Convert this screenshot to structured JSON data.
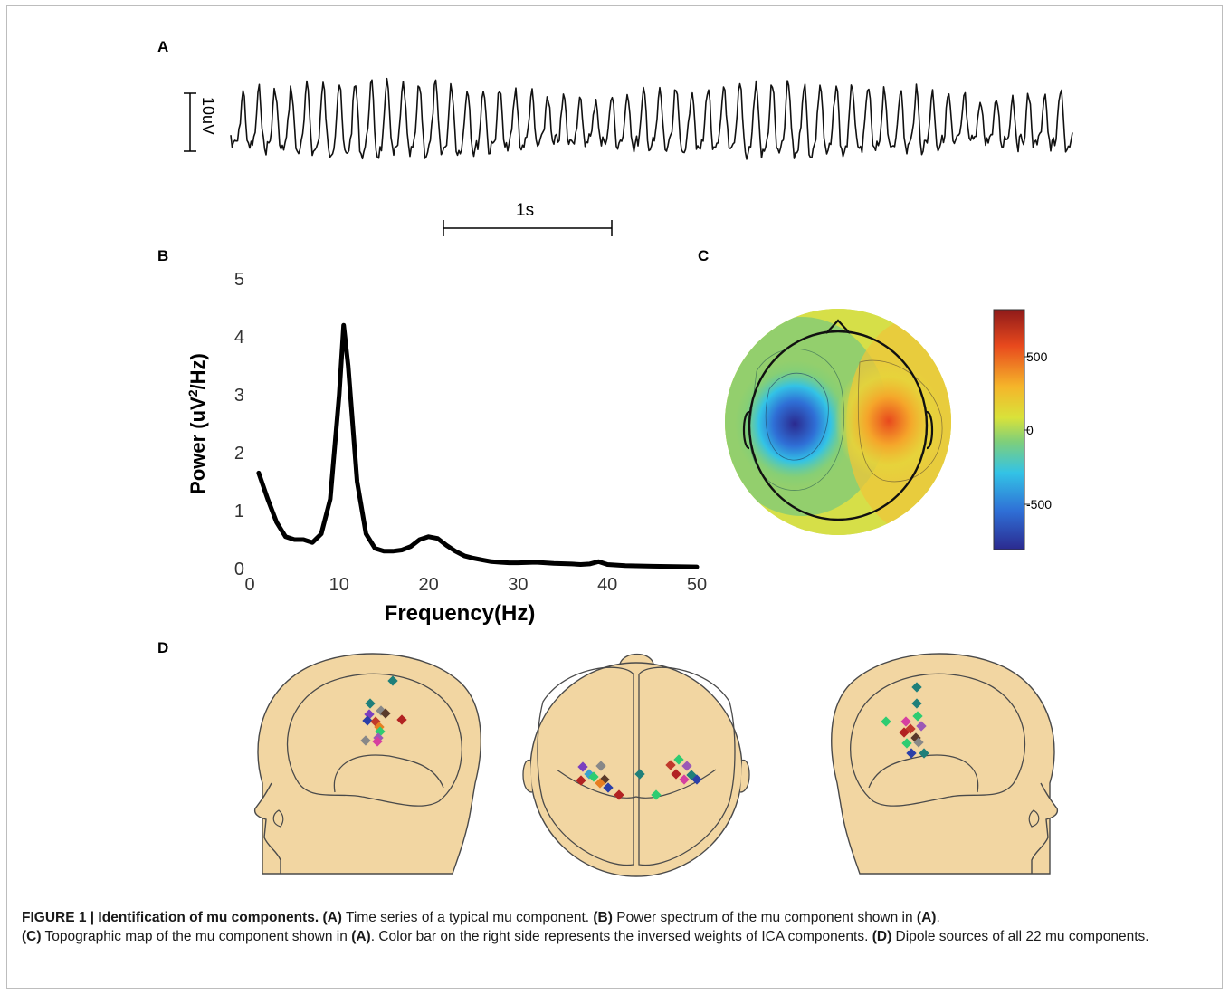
{
  "panels": {
    "a": "A",
    "b": "B",
    "c": "C",
    "d": "D"
  },
  "panel_a": {
    "scale_voltage": "10uV",
    "scale_time": "1s"
  },
  "chart_data": [
    {
      "type": "line",
      "panel": "B",
      "xlabel": "Frequency(Hz)",
      "ylabel": "Power (uV²/Hz)",
      "xlim": [
        0,
        50
      ],
      "ylim": [
        0,
        5
      ],
      "xticks": [
        0,
        10,
        20,
        30,
        40,
        50
      ],
      "yticks": [
        0,
        1,
        2,
        3,
        4,
        5
      ],
      "series": [
        {
          "x": [
            1,
            2,
            3,
            4,
            5,
            6,
            7,
            8,
            9,
            10,
            10.5,
            11,
            12,
            13,
            14,
            15,
            16,
            17,
            18,
            19,
            20,
            21,
            22,
            23,
            24,
            25,
            26,
            27,
            28,
            29,
            30,
            32,
            34,
            36,
            37,
            38,
            39,
            40,
            42,
            45,
            50
          ],
          "y": [
            1.65,
            1.2,
            0.8,
            0.55,
            0.5,
            0.5,
            0.45,
            0.6,
            1.2,
            3.0,
            4.2,
            3.5,
            1.5,
            0.6,
            0.35,
            0.3,
            0.3,
            0.32,
            0.38,
            0.5,
            0.55,
            0.52,
            0.4,
            0.3,
            0.22,
            0.18,
            0.15,
            0.12,
            0.11,
            0.1,
            0.1,
            0.11,
            0.09,
            0.08,
            0.07,
            0.08,
            0.12,
            0.07,
            0.05,
            0.04,
            0.03
          ]
        }
      ]
    },
    {
      "type": "heatmap",
      "panel": "C",
      "colorbar_ticks": [
        "500",
        "0",
        "-500"
      ],
      "colorbar_range": [
        -800,
        800
      ],
      "colors": [
        "#2b2a8f",
        "#2f6fd6",
        "#33c3e6",
        "#7fcf7a",
        "#d9e23a",
        "#f5b52a",
        "#e8491d",
        "#8f1a1a"
      ]
    }
  ],
  "dipoles_colors": [
    "#1f7f7a",
    "#7b3fbf",
    "#2b3fa8",
    "#c0392b",
    "#5a3a2a",
    "#888888",
    "#d63fa0",
    "#3aa0d0",
    "#e67e22",
    "#2ecc71",
    "#9b59b6",
    "#b22222"
  ],
  "caption": {
    "label": "FIGURE 1 | Identification of mu components.",
    "a_tag": "(A)",
    "a_text": " Time series of a typical mu component. ",
    "b_tag": "(B)",
    "b_text": " Power spectrum of the mu component shown in ",
    "b_ref": "(A)",
    "c_tag": "(C)",
    "c_text": " Topographic map of the mu component shown in ",
    "c_ref": "(A)",
    "c_text2": ". Color bar on the right side represents the inversed weights of ICA components. ",
    "d_tag": "(D)",
    "d_text": " Dipole sources of all 22 mu components."
  }
}
